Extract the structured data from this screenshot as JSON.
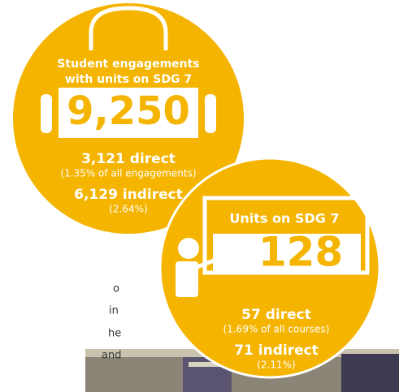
{
  "engagements": {
    "title_lines": [
      "Student engagements",
      "with units on SDG 7"
    ],
    "total": "9,250",
    "direct": "3,121 direct",
    "direct_note": "(1.35% of all engagements)",
    "indirect": "6,129 indirect",
    "indirect_note": "(2.64%)"
  },
  "units": {
    "title": "Units on SDG 7",
    "total": "128",
    "direct": "57 direct",
    "direct_note": "(1.69% of all courses)",
    "indirect": "71 indirect",
    "indirect_note": "(2.11%)"
  },
  "side_text": [
    "o",
    "in",
    "he",
    "and"
  ]
}
